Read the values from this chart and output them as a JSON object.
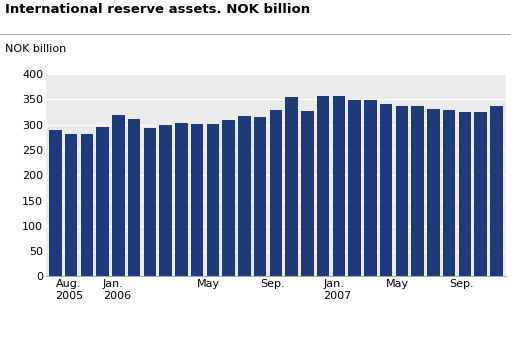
{
  "title": "International reserve assets. NOK billion",
  "ylabel": "NOK billion",
  "bar_color": "#1f3a7a",
  "background_color": "#ffffff",
  "plot_bg_color": "#ebebeb",
  "ylim": [
    0,
    400
  ],
  "yticks": [
    0,
    50,
    100,
    150,
    200,
    250,
    300,
    350,
    400
  ],
  "values": [
    289,
    282,
    281,
    295,
    320,
    311,
    294,
    300,
    304,
    301,
    301,
    310,
    318,
    315,
    329,
    354,
    328,
    356,
    356,
    349,
    348,
    341,
    337,
    336,
    332,
    330,
    325,
    326,
    337
  ],
  "n_bars": 29,
  "tick_positions": [
    0,
    3,
    9,
    13,
    17,
    21,
    25
  ],
  "tick_labels": [
    "Aug.\n2005",
    "Jan.\n2006",
    "May",
    "Sep.",
    "Jan.\n2007",
    "May",
    "Sep."
  ]
}
